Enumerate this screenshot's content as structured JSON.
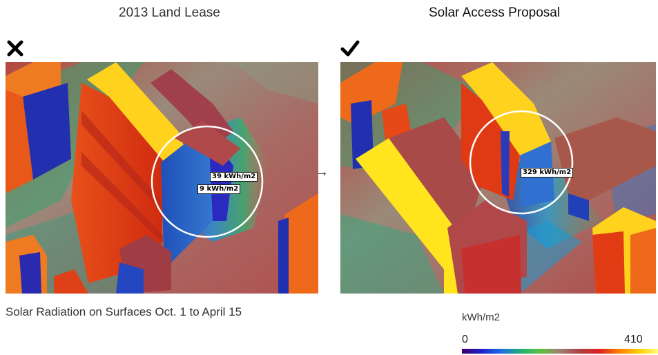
{
  "left_panel": {
    "title": "2013 Land Lease",
    "status_icon": "cross-icon",
    "labels": [
      "39 kWh/m2",
      "9 kWh/m2"
    ]
  },
  "right_panel": {
    "title": "Solar Access Proposal",
    "status_icon": "check-icon",
    "labels": [
      "329 kWh/m2"
    ]
  },
  "arrow_glyph": "→",
  "caption": "Solar Radiation on Surfaces Oct. 1 to April 15",
  "legend": {
    "unit": "kWh/m2",
    "min": "0",
    "max": "410",
    "gradient": [
      "#3a0066",
      "#1e1ecc",
      "#1e6ee6",
      "#20b070",
      "#60c040",
      "#a08070",
      "#b04040",
      "#e02020",
      "#ff8000",
      "#ffd000",
      "#ffff80"
    ]
  },
  "colors": {
    "ground": "#a86a64",
    "roof_yellow": "#ffd21e",
    "wall_red": "#e23c14",
    "wall_orange": "#ee6a1a",
    "wall_blue": "#2a5ec8",
    "shadow_green": "#2faa6a",
    "circle": "#ffffff"
  }
}
